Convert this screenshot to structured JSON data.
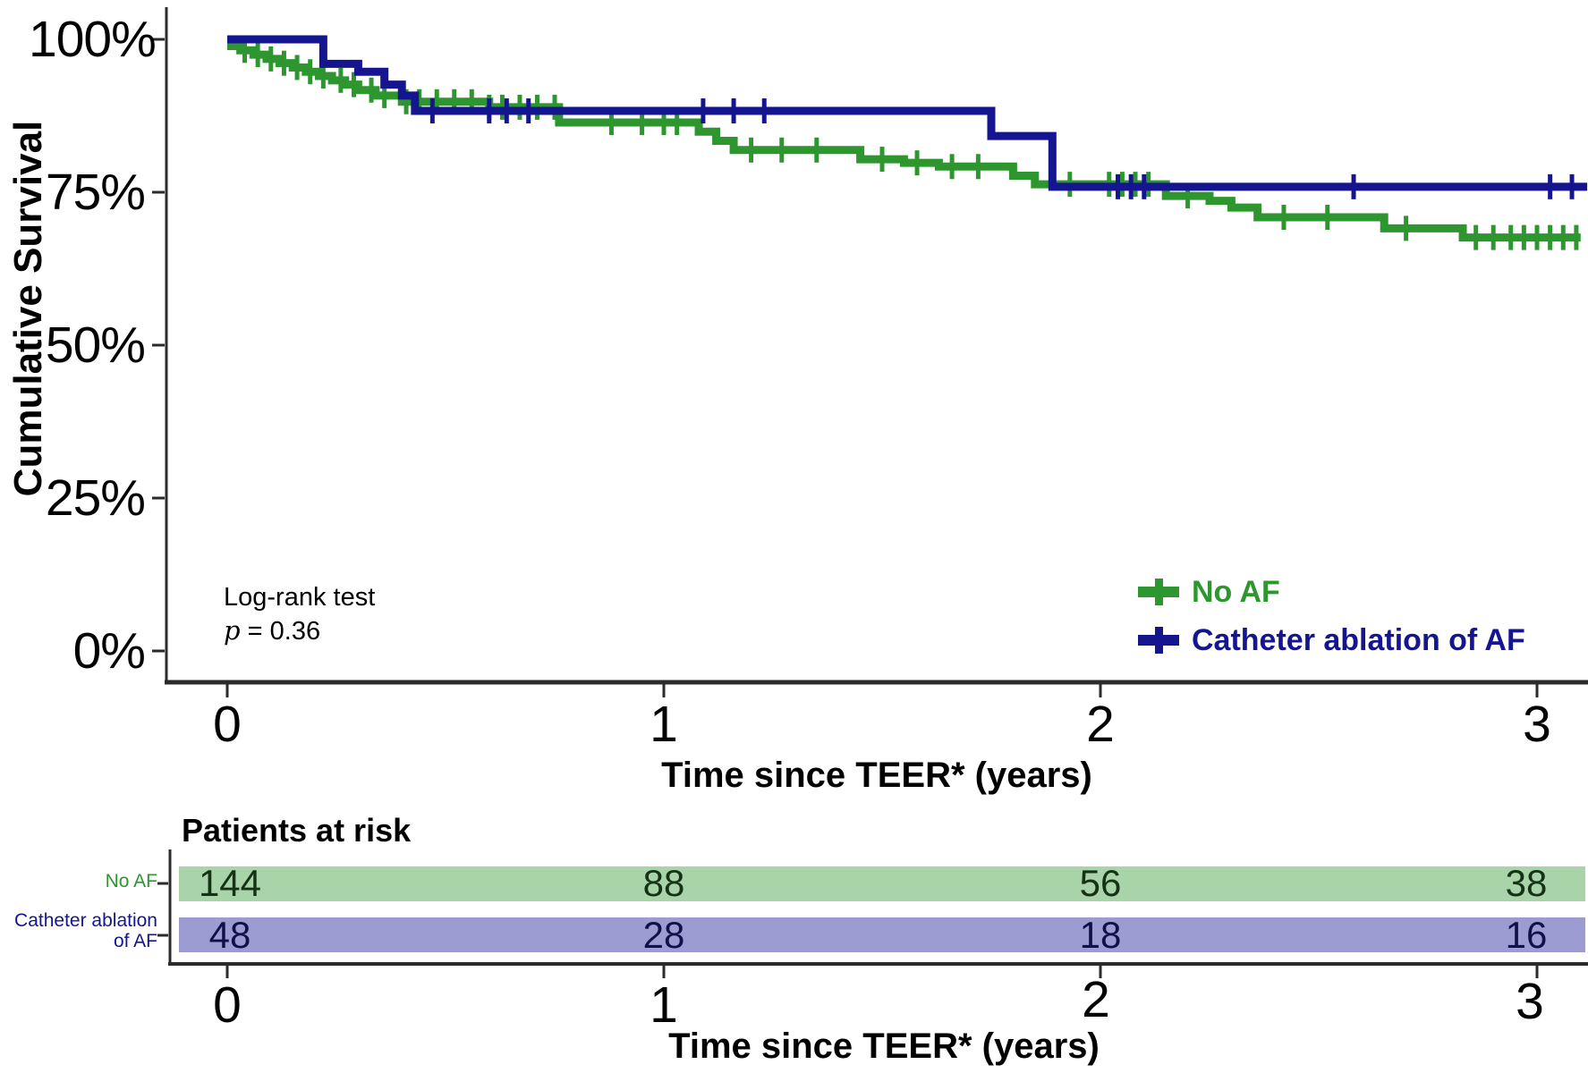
{
  "labels": {
    "y_ticks": [
      "100%",
      "75%",
      "50%",
      "25%",
      "0%"
    ],
    "x_ticks": [
      "0",
      "1",
      "2",
      "3"
    ]
  },
  "annotation": {
    "line1": "Log-rank test",
    "symbol": "p",
    "rest": " = 0.36"
  },
  "legend": {
    "items": [
      {
        "label": "No AF",
        "color": "#2E962E"
      },
      {
        "label": "Catheter ablation of AF",
        "color": "#15158F"
      }
    ]
  },
  "chart_data": {
    "type": "line",
    "variant": "kaplan_meier_step",
    "title": "",
    "xlabel": "Time since TEER* (years)",
    "ylabel": "Cumulative Survival",
    "xlim": [
      0,
      3.12
    ],
    "ylim_percent": [
      0,
      100
    ],
    "x_tick_values": [
      0,
      1,
      2,
      3
    ],
    "y_tick_values": [
      100,
      75,
      50,
      25,
      0
    ],
    "grid": false,
    "legend_position": "inside-bottom-right",
    "series": [
      {
        "name": "No AF",
        "color": "#2E962E",
        "end_t": 3.1,
        "steps": [
          [
            0,
            98.9
          ],
          [
            0.03,
            98.2
          ],
          [
            0.06,
            97.5
          ],
          [
            0.09,
            96.8
          ],
          [
            0.12,
            96.1
          ],
          [
            0.15,
            95.4
          ],
          [
            0.18,
            94.7
          ],
          [
            0.21,
            94.0
          ],
          [
            0.24,
            93.3
          ],
          [
            0.27,
            92.6
          ],
          [
            0.3,
            91.7
          ],
          [
            0.34,
            90.8
          ],
          [
            0.4,
            89.8
          ],
          [
            0.6,
            88.9
          ],
          [
            0.76,
            86.4
          ],
          [
            1.08,
            84.9
          ],
          [
            1.12,
            83.4
          ],
          [
            1.16,
            81.9
          ],
          [
            1.45,
            80.4
          ],
          [
            1.55,
            79.8
          ],
          [
            1.63,
            79.2
          ],
          [
            1.8,
            77.7
          ],
          [
            1.85,
            76.3
          ],
          [
            2.15,
            74.4
          ],
          [
            2.25,
            73.6
          ],
          [
            2.3,
            72.5
          ],
          [
            2.36,
            70.9
          ],
          [
            2.65,
            69.1
          ],
          [
            2.83,
            67.6
          ]
        ],
        "censor_t": [
          0.04,
          0.07,
          0.1,
          0.13,
          0.16,
          0.19,
          0.22,
          0.26,
          0.29,
          0.33,
          0.36,
          0.41,
          0.44,
          0.48,
          0.52,
          0.56,
          0.6,
          0.63,
          0.67,
          0.71,
          0.75,
          0.88,
          0.95,
          1.0,
          1.03,
          1.2,
          1.27,
          1.35,
          1.5,
          1.58,
          1.66,
          1.72,
          1.93,
          2.02,
          2.05,
          2.08,
          2.11,
          2.2,
          2.42,
          2.52,
          2.7,
          2.86,
          2.9,
          2.94,
          2.97,
          3.0,
          3.03,
          3.06,
          3.09
        ]
      },
      {
        "name": "Catheter ablation of AF",
        "color": "#15158F",
        "end_t": 3.115,
        "steps": [
          [
            0,
            100
          ],
          [
            0.22,
            96.0
          ],
          [
            0.3,
            94.7
          ],
          [
            0.36,
            92.6
          ],
          [
            0.4,
            90.8
          ],
          [
            0.43,
            88.3
          ],
          [
            1.75,
            84.2
          ],
          [
            1.89,
            75.9
          ]
        ],
        "censor_t": [
          0.47,
          0.6,
          0.64,
          0.69,
          1.09,
          1.16,
          1.23,
          2.04,
          2.07,
          2.1,
          2.58,
          3.03,
          3.08
        ]
      }
    ],
    "risk_table": {
      "title": "Patients at risk",
      "xlabel": "Time since TEER* (years)",
      "x_ticks": [
        "0",
        "1",
        "2",
        "3"
      ],
      "rows": [
        {
          "label_lines": [
            "No AF"
          ],
          "color": "#2E962E",
          "band_color": "#A9D3A9",
          "value_color": "#163216",
          "values": [
            "144",
            "88",
            "56",
            "38"
          ]
        },
        {
          "label_lines": [
            "Catheter ablation",
            "of AF"
          ],
          "color": "#15158F",
          "band_color": "#9C9CD2",
          "value_color": "#10104A",
          "values": [
            "48",
            "28",
            "18",
            "16"
          ]
        }
      ]
    }
  }
}
